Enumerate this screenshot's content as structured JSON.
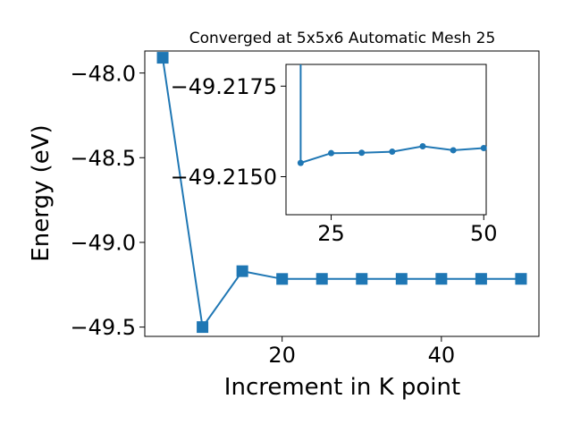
{
  "chart_data": [
    {
      "type": "line",
      "title": "Converged at 5x5x6 Automatic Mesh 25",
      "xlabel": "Increment in K point",
      "ylabel": "Energy (eV)",
      "xlim": [
        2.75,
        52.25
      ],
      "ylim": [
        -49.555,
        -47.87
      ],
      "xticks": [
        20,
        40
      ],
      "yticks": [
        -48.0,
        -48.5,
        -49.0,
        -49.5
      ],
      "ytick_labels": [
        "−48.0",
        "−48.5",
        "−49.0",
        "−49.5"
      ],
      "color": "#1f77b4",
      "marker": "square",
      "series": [
        {
          "x": [
            5,
            10,
            15,
            20,
            25,
            30,
            35,
            40,
            45,
            50
          ],
          "y": [
            -47.91,
            -49.5,
            -49.17,
            -49.216,
            -49.2155,
            -49.2155,
            -49.2155,
            -49.2153,
            -49.2154,
            -49.2154
          ]
        }
      ]
    },
    {
      "type": "line",
      "title": "",
      "xlabel": "",
      "ylabel": "",
      "xlim": [
        17.6,
        50.4
      ],
      "ylim": [
        -49.21395,
        -49.2181
      ],
      "xticks": [
        25,
        50
      ],
      "yticks": [
        -49.2175,
        -49.215
      ],
      "ytick_labels": [
        "−49.2175",
        "−49.2150"
      ],
      "color": "#1f77b4",
      "marker": "circle",
      "series": [
        {
          "x": [
            20,
            25,
            30,
            35,
            40,
            45,
            50
          ],
          "y": [
            -49.21538,
            -49.21565,
            -49.21566,
            -49.21569,
            -49.21584,
            -49.21573,
            -49.21579
          ],
          "offscreen_start": {
            "x": 20,
            "y": -49.22
          }
        }
      ]
    }
  ]
}
